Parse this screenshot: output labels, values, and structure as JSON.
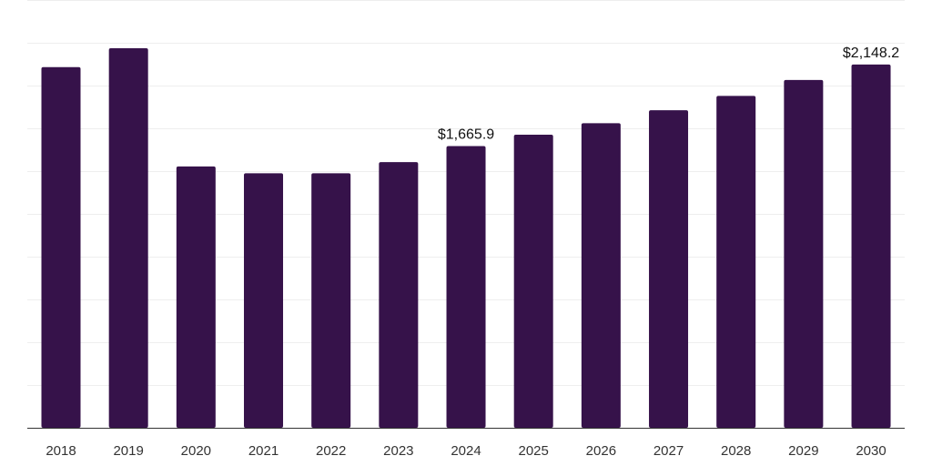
{
  "chart_data": {
    "type": "bar",
    "categories": [
      "2018",
      "2019",
      "2020",
      "2021",
      "2022",
      "2023",
      "2024",
      "2025",
      "2026",
      "2027",
      "2028",
      "2029",
      "2030"
    ],
    "values": [
      2133.0,
      2245.0,
      1545.5,
      1505.0,
      1505.0,
      1571.0,
      1665.9,
      1733.0,
      1801.0,
      1878.0,
      1963.0,
      2057.0,
      2148.2
    ],
    "data_labels": [
      "",
      "",
      "",
      "",
      "",
      "",
      "$1,665.9",
      "",
      "",
      "",
      "",
      "",
      "$2,148.2"
    ],
    "title": "",
    "xlabel": "",
    "ylabel": "",
    "ylim": [
      0,
      2530
    ],
    "grid": true,
    "colors": {
      "bar": "#36124a",
      "grid": "#eeeeee",
      "axis": "#333333"
    }
  }
}
